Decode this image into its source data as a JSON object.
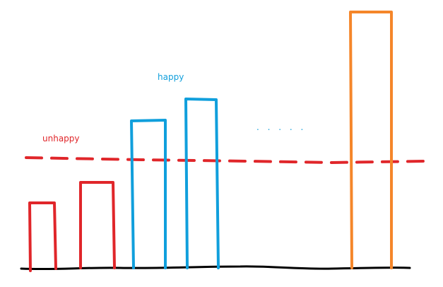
{
  "labels": {
    "unhappy": "unhappy",
    "happy": "happy",
    "ellipsis": ". . . . ."
  },
  "colors": {
    "red": "#e0262a",
    "blue": "#109fdc",
    "orange": "#f5862a",
    "black": "#000000"
  }
}
